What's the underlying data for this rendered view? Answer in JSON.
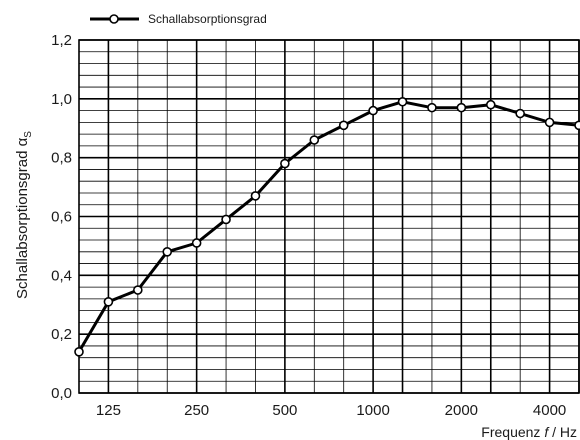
{
  "chart_data": {
    "type": "line",
    "legend": {
      "label": "Schallabsorptionsgrad",
      "placement": "top-left"
    },
    "ylabel": "Schallabsorptionsgrad α",
    "ylabel_subscript": "S",
    "xlabel_prefix": "Frequenz ",
    "xlabel_var": "f",
    "xlabel_suffix": " / Hz",
    "x_tick_labels": [
      "125",
      "250",
      "500",
      "1000",
      "2000",
      "4000"
    ],
    "y_tick_labels": [
      "0,0",
      "0,2",
      "0,4",
      "0,6",
      "0,8",
      "1,0",
      "1,2"
    ],
    "ylim": [
      0,
      1.2
    ],
    "x_scale": "log (third-octave bands)",
    "x": [
      100,
      125,
      160,
      200,
      250,
      315,
      400,
      500,
      630,
      800,
      1000,
      1250,
      1600,
      2000,
      2500,
      3150,
      4000,
      5000
    ],
    "series": [
      {
        "values": [
          0.14,
          0.31,
          0.35,
          0.48,
          0.51,
          0.59,
          0.67,
          0.78,
          0.86,
          0.91,
          0.96,
          0.99,
          0.97,
          0.97,
          0.98,
          0.95,
          0.92,
          0.91
        ]
      }
    ],
    "grid": true,
    "colors": {
      "line": "#000000",
      "grid": "#000000",
      "background": "#ffffff"
    }
  }
}
